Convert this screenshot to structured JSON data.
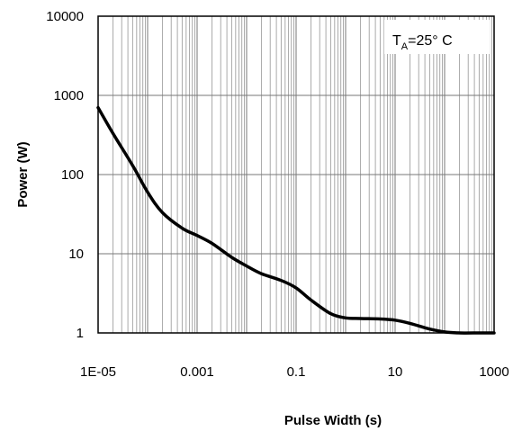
{
  "chart_data": {
    "type": "line",
    "xlabel": "Pulse Width (s)",
    "ylabel": "Power (W)",
    "x_scale": "log",
    "y_scale": "log",
    "xlim": [
      1e-05,
      1000
    ],
    "ylim": [
      1,
      10000
    ],
    "x_ticks": [
      1e-05,
      0.001,
      0.1,
      10,
      1000
    ],
    "x_tick_labels": [
      "1E-05",
      "0.001",
      "0.1",
      "10",
      "1000"
    ],
    "y_ticks": [
      1,
      10,
      100,
      1000,
      10000
    ],
    "y_tick_labels": [
      "1",
      "10",
      "100",
      "1000",
      "10000"
    ],
    "grid": true,
    "legend": "none",
    "annotation": {
      "main": "T",
      "sub": "A",
      "rest": "=25°  C",
      "placement": "top-right"
    },
    "series": [
      {
        "color": "#000000",
        "points": [
          {
            "x": 1e-05,
            "y": 700
          },
          {
            "x": 2e-05,
            "y": 330
          },
          {
            "x": 5e-05,
            "y": 130
          },
          {
            "x": 0.0001,
            "y": 60
          },
          {
            "x": 0.0002,
            "y": 33
          },
          {
            "x": 0.0005,
            "y": 21
          },
          {
            "x": 0.001,
            "y": 17
          },
          {
            "x": 0.002,
            "y": 13.5
          },
          {
            "x": 0.005,
            "y": 9
          },
          {
            "x": 0.01,
            "y": 7
          },
          {
            "x": 0.02,
            "y": 5.6
          },
          {
            "x": 0.05,
            "y": 4.6
          },
          {
            "x": 0.1,
            "y": 3.7
          },
          {
            "x": 0.2,
            "y": 2.6
          },
          {
            "x": 0.5,
            "y": 1.75
          },
          {
            "x": 1,
            "y": 1.55
          },
          {
            "x": 2,
            "y": 1.52
          },
          {
            "x": 5,
            "y": 1.5
          },
          {
            "x": 10,
            "y": 1.45
          },
          {
            "x": 20,
            "y": 1.32
          },
          {
            "x": 50,
            "y": 1.12
          },
          {
            "x": 100,
            "y": 1.03
          },
          {
            "x": 200,
            "y": 1.0
          },
          {
            "x": 500,
            "y": 1.0
          },
          {
            "x": 1000,
            "y": 1.0
          }
        ]
      }
    ]
  }
}
